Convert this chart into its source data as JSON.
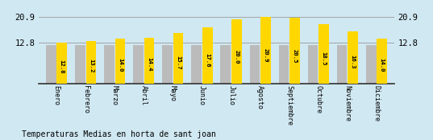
{
  "categories": [
    "Enero",
    "Febrero",
    "Marzo",
    "Abril",
    "Mayo",
    "Junio",
    "Julio",
    "Agosto",
    "Septiembre",
    "Octubre",
    "Noviembre",
    "Diciembre"
  ],
  "values": [
    12.8,
    13.2,
    14.0,
    14.4,
    15.7,
    17.6,
    20.0,
    20.9,
    20.5,
    18.5,
    16.3,
    14.0
  ],
  "gray_values": [
    12.0,
    12.0,
    12.0,
    12.0,
    12.0,
    12.0,
    12.0,
    12.0,
    12.0,
    12.0,
    12.0,
    12.0
  ],
  "bar_color_yellow": "#FFD700",
  "bar_color_gray": "#BBBBBB",
  "background_color": "#D0E8F2",
  "title": "Temperaturas Medias en horta de sant joan",
  "ytick_values": [
    12.8,
    20.9
  ],
  "ylim_min": 0,
  "ylim_max": 23.0,
  "value_label_color": "#000000",
  "label_fontsize": 5.2,
  "title_fontsize": 7.0,
  "axis_label_fontsize": 6.0,
  "ytick_fontsize": 7.5,
  "bar_width": 0.35,
  "group_width": 0.75
}
